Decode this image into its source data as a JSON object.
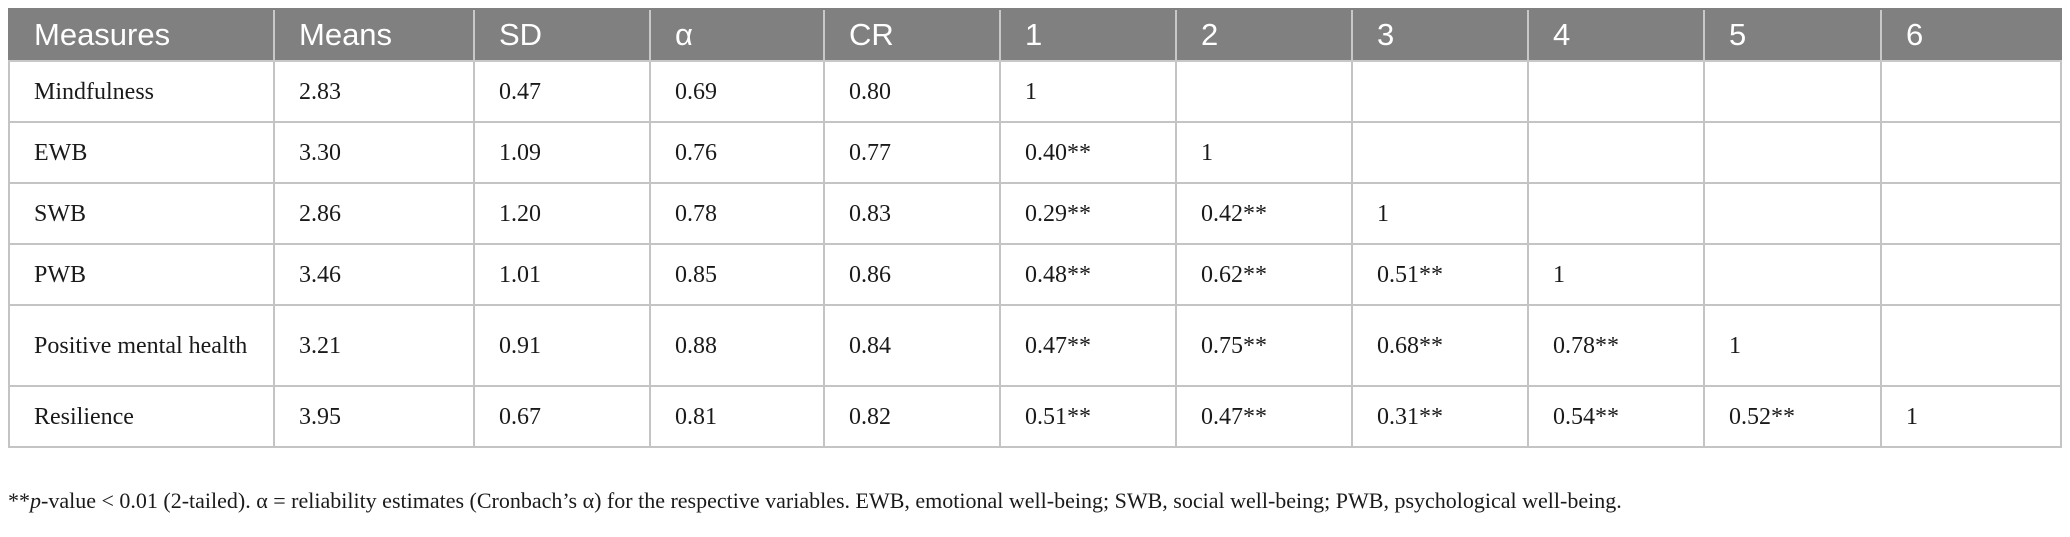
{
  "table": {
    "headers": [
      "Measures",
      "Means",
      "SD",
      "α",
      "CR",
      "1",
      "2",
      "3",
      "4",
      "5",
      "6"
    ],
    "rows": [
      [
        "Mindfulness",
        "2.83",
        "0.47",
        "0.69",
        "0.80",
        "1",
        "",
        "",
        "",
        "",
        ""
      ],
      [
        "EWB",
        "3.30",
        "1.09",
        "0.76",
        "0.77",
        "0.40**",
        "1",
        "",
        "",
        "",
        ""
      ],
      [
        "SWB",
        "2.86",
        "1.20",
        "0.78",
        "0.83",
        "0.29**",
        "0.42**",
        "1",
        "",
        "",
        ""
      ],
      [
        "PWB",
        "3.46",
        "1.01",
        "0.85",
        "0.86",
        "0.48**",
        "0.62**",
        "0.51**",
        "1",
        "",
        ""
      ],
      [
        "Positive mental health",
        "3.21",
        "0.91",
        "0.88",
        "0.84",
        "0.47**",
        "0.75**",
        "0.68**",
        "0.78**",
        "1",
        ""
      ],
      [
        "Resilience",
        "3.95",
        "0.67",
        "0.81",
        "0.82",
        "0.51**",
        "0.47**",
        "0.31**",
        "0.54**",
        "0.52**",
        "1"
      ]
    ]
  },
  "footnote": {
    "prefix": "**",
    "italic": "p",
    "rest": "-value < 0.01 (2-tailed). α = reliability estimates (Cronbach’s α) for the respective variables. EWB, emotional well-being; SWB, social well-being; PWB, psychological well-being."
  }
}
